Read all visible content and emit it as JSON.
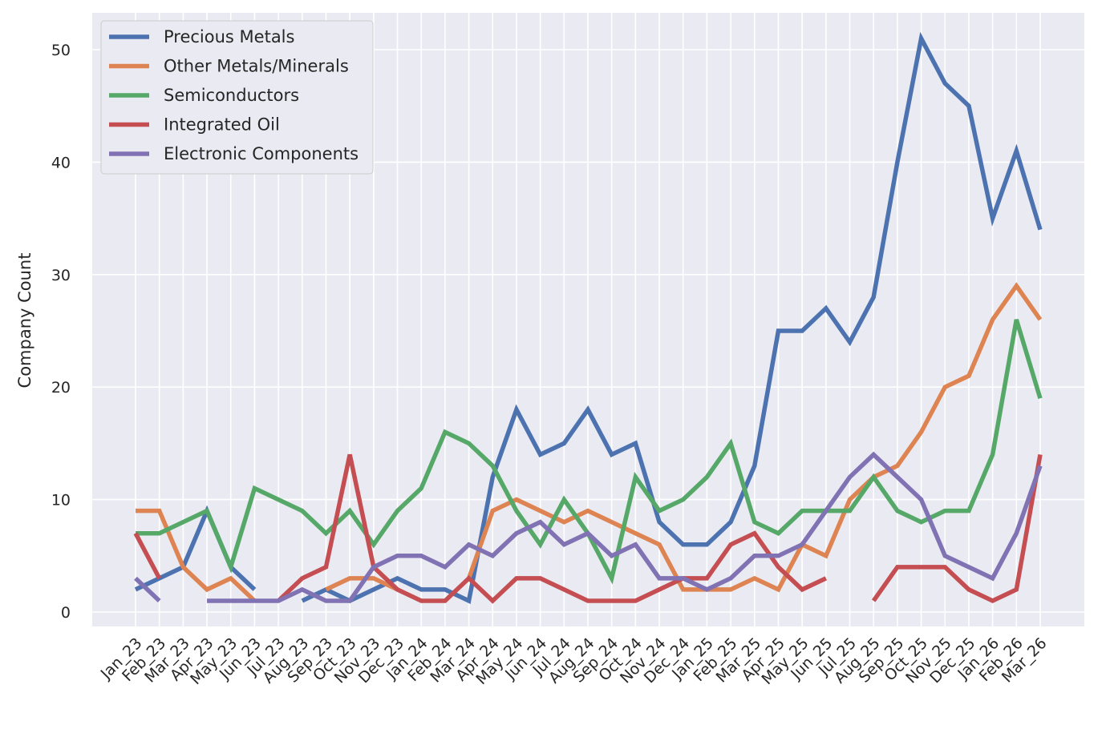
{
  "chart_data": {
    "type": "line",
    "title": "",
    "xlabel": "",
    "ylabel": "Company Count",
    "ylim": [
      -1.5,
      53
    ],
    "yticks": [
      0,
      10,
      20,
      30,
      40,
      50
    ],
    "grid": true,
    "legend_position": "top-left",
    "categories": [
      "Jan_23",
      "Feb_23",
      "Mar_23",
      "Apr_23",
      "May_23",
      "Jun_23",
      "Jul_23",
      "Aug_23",
      "Sep_23",
      "Oct_23",
      "Nov_23",
      "Dec_23",
      "Jan_24",
      "Feb_24",
      "Mar_24",
      "Apr_24",
      "May_24",
      "Jun_24",
      "Jul_24",
      "Aug_24",
      "Sep_24",
      "Oct_24",
      "Nov_24",
      "Dec_24",
      "Jan_25",
      "Feb_25",
      "Mar_25",
      "Apr_25",
      "May_25",
      "Jun_25",
      "Jul_25",
      "Aug_25",
      "Sep_25",
      "Oct_25",
      "Nov_25",
      "Dec_25",
      "Jan_26",
      "Feb_26",
      "Mar_26"
    ],
    "series": [
      {
        "name": "Precious Metals",
        "color": "#4c72b0",
        "values": [
          2,
          3,
          4,
          9,
          4,
          2,
          null,
          1,
          2,
          1,
          2,
          3,
          2,
          2,
          1,
          12,
          18,
          14,
          15,
          18,
          14,
          15,
          8,
          6,
          6,
          8,
          13,
          25,
          25,
          27,
          24,
          28,
          40,
          51,
          47,
          45,
          35,
          41,
          34
        ]
      },
      {
        "name": "Other Metals/Minerals",
        "color": "#dd8452",
        "values": [
          9,
          9,
          4,
          2,
          3,
          1,
          null,
          null,
          2,
          3,
          3,
          2,
          null,
          null,
          3,
          9,
          10,
          9,
          8,
          9,
          8,
          7,
          6,
          2,
          2,
          2,
          3,
          2,
          6,
          5,
          10,
          12,
          13,
          16,
          20,
          21,
          26,
          29,
          26
        ]
      },
      {
        "name": "Semiconductors",
        "color": "#55a868",
        "values": [
          7,
          7,
          8,
          9,
          4,
          11,
          10,
          9,
          7,
          9,
          6,
          9,
          11,
          16,
          15,
          13,
          9,
          6,
          10,
          7,
          3,
          12,
          9,
          10,
          12,
          15,
          8,
          7,
          9,
          9,
          9,
          12,
          9,
          8,
          9,
          9,
          14,
          26,
          19
        ]
      },
      {
        "name": "Integrated Oil",
        "color": "#c44e52",
        "values": [
          7,
          3,
          null,
          null,
          null,
          null,
          1,
          3,
          4,
          14,
          4,
          2,
          1,
          1,
          3,
          1,
          3,
          3,
          2,
          1,
          1,
          1,
          2,
          3,
          3,
          6,
          7,
          4,
          2,
          3,
          null,
          1,
          4,
          4,
          4,
          2,
          1,
          2,
          14
        ]
      },
      {
        "name": "Electronic Components",
        "color": "#8172b3",
        "values": [
          3,
          1,
          null,
          1,
          1,
          1,
          1,
          2,
          1,
          1,
          4,
          5,
          5,
          4,
          6,
          5,
          7,
          8,
          6,
          7,
          5,
          6,
          3,
          3,
          2,
          3,
          5,
          5,
          6,
          9,
          12,
          14,
          12,
          10,
          5,
          4,
          3,
          7,
          13
        ]
      }
    ]
  }
}
